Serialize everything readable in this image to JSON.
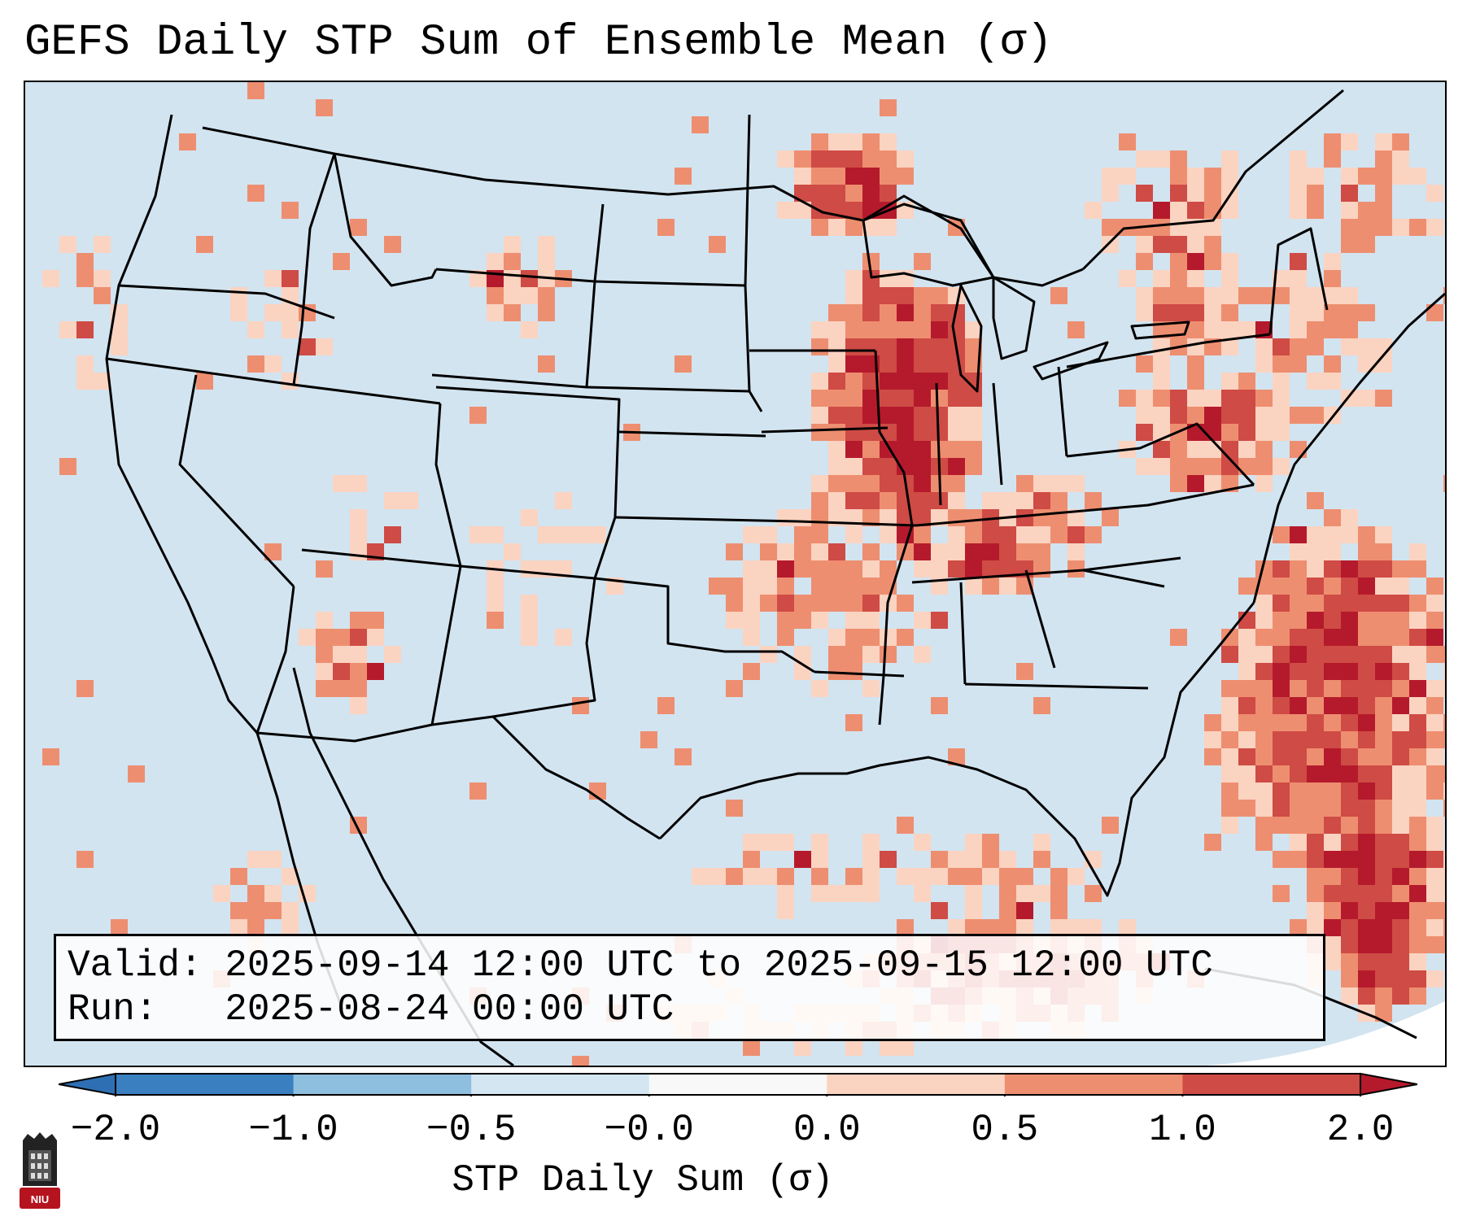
{
  "title": "GEFS Daily STP Sum of Ensemble Mean (σ)",
  "info": {
    "valid_label": "Valid:",
    "valid_value": "2025-09-14 12:00 UTC to 2025-09-15 12:00 UTC",
    "run_label": "Run:",
    "run_value": "2025-08-24 00:00 UTC"
  },
  "colorbar": {
    "label": "STP Daily Sum (σ)",
    "ticks": [
      "−2.0",
      "−1.0",
      "−0.5",
      "−0.0",
      "0.0",
      "0.5",
      "1.0",
      "2.0"
    ],
    "colors": [
      "#3a7fc0",
      "#8ebfdf",
      "#d3e6f1",
      "#f8f8f8",
      "#fbd3c1",
      "#ee8e70",
      "#cf4b45"
    ],
    "extend_low_color": "#2e6fb3",
    "extend_high_color": "#b51a2c"
  },
  "map": {
    "background_color": "#d2e4f0",
    "offgrid_color": "#ffffff",
    "anomaly_colors": [
      "#fbd3c1",
      "#ee8e70",
      "#cf4b45",
      "#b51a2c"
    ]
  },
  "logo": {
    "text": "NIU",
    "color": "#b5141f"
  }
}
